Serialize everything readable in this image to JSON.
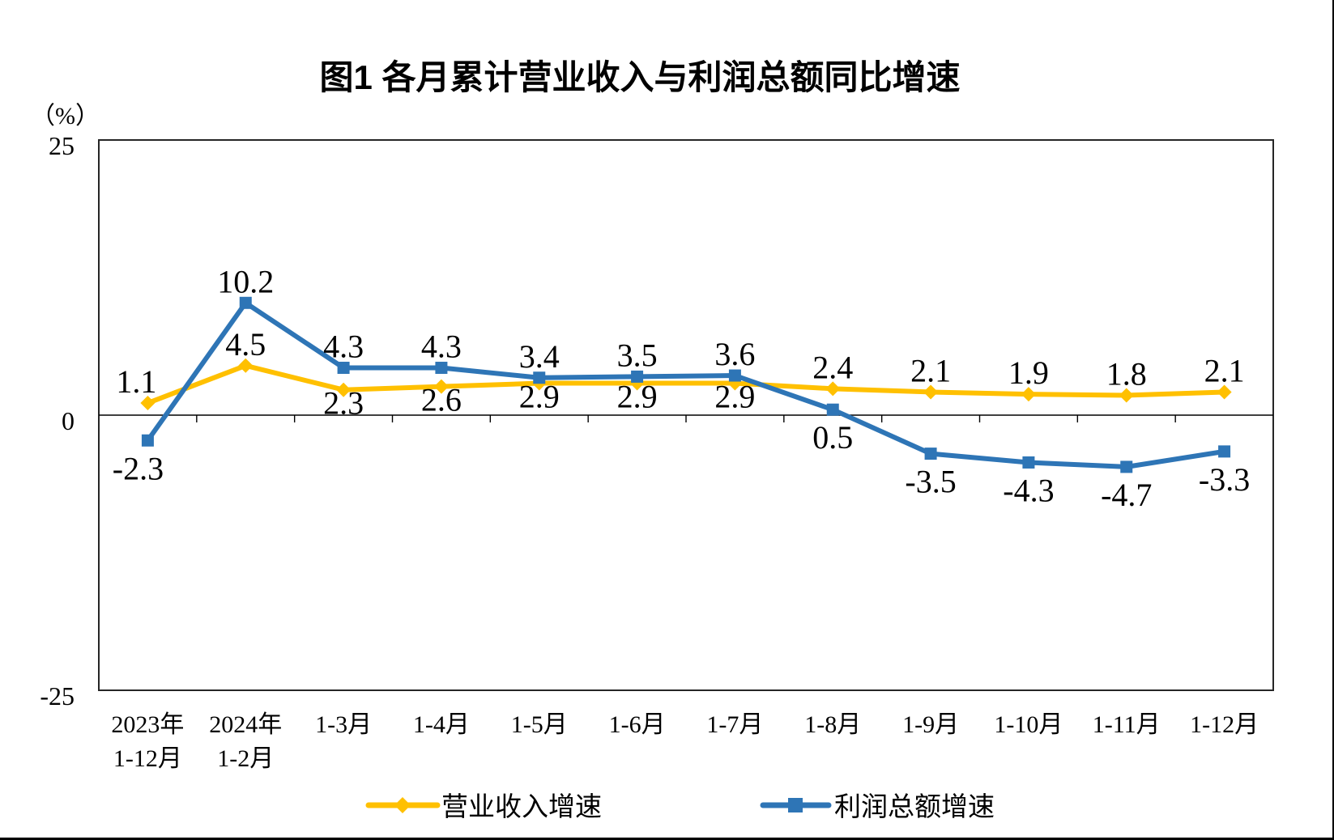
{
  "page": {
    "title": "图1  各月累计营业收入与利润总额同比增速"
  },
  "y_axis": {
    "unit": "（%）"
  },
  "chart_data": {
    "type": "line",
    "title": "图1  各月累计营业收入与利润总额同比增速",
    "unit": "（%）",
    "ylim": [
      -25,
      25
    ],
    "yticks": [
      25,
      0,
      -25
    ],
    "ytick_labels": [
      "25",
      "0",
      "-25"
    ],
    "grid": "off",
    "legend_position": "bottom",
    "categories": [
      {
        "label": "2023年",
        "sublabel": "1-12月"
      },
      {
        "label": "2024年",
        "sublabel": "1-2月"
      },
      {
        "label": "1-3月",
        "sublabel": ""
      },
      {
        "label": "1-4月",
        "sublabel": ""
      },
      {
        "label": "1-5月",
        "sublabel": ""
      },
      {
        "label": "1-6月",
        "sublabel": ""
      },
      {
        "label": "1-7月",
        "sublabel": ""
      },
      {
        "label": "1-8月",
        "sublabel": ""
      },
      {
        "label": "1-9月",
        "sublabel": ""
      },
      {
        "label": "1-10月",
        "sublabel": ""
      },
      {
        "label": "1-11月",
        "sublabel": ""
      },
      {
        "label": "1-12月",
        "sublabel": ""
      }
    ],
    "series": [
      {
        "key": "revenue",
        "name": "营业收入增速",
        "color": "#FFC000",
        "marker": "diamond",
        "values": [
          1.1,
          4.5,
          2.3,
          2.6,
          2.9,
          2.9,
          2.9,
          2.4,
          2.1,
          1.9,
          1.8,
          2.1
        ],
        "data_labels": [
          "1.1",
          "4.5",
          "2.3",
          "2.6",
          "2.9",
          "2.9",
          "2.9",
          "2.4",
          "2.1",
          "1.9",
          "1.8",
          "2.1"
        ],
        "label_positions": [
          "above",
          "above",
          "below",
          "below",
          "below",
          "below",
          "below",
          "above",
          "above",
          "above",
          "above",
          "above"
        ]
      },
      {
        "key": "profit",
        "name": "利润总额增速",
        "color": "#2E75B6",
        "marker": "square",
        "values": [
          -2.3,
          10.2,
          4.3,
          4.3,
          3.4,
          3.5,
          3.6,
          0.5,
          -3.5,
          -4.3,
          -4.7,
          -3.3
        ],
        "data_labels": [
          "-2.3",
          "10.2",
          "4.3",
          "4.3",
          "3.4",
          "3.5",
          "3.6",
          "0.5",
          "-3.5",
          "-4.3",
          "-4.7",
          "-3.3"
        ],
        "label_positions": [
          "below",
          "above",
          "above",
          "above",
          "above",
          "above",
          "above",
          "below",
          "below",
          "below",
          "below",
          "below"
        ]
      }
    ]
  }
}
